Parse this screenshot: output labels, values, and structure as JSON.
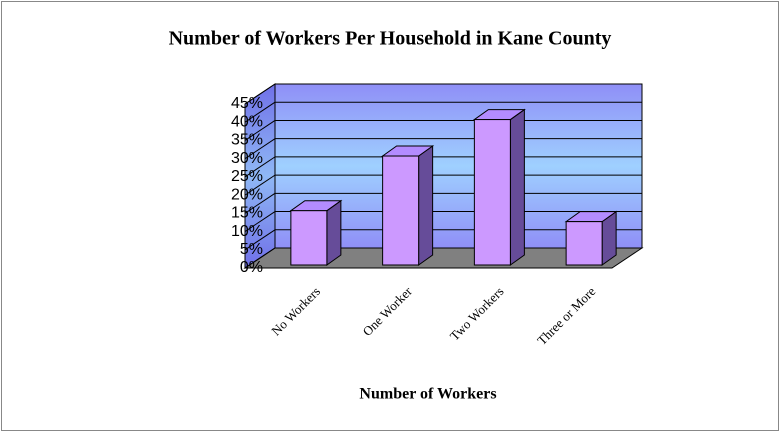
{
  "chart_data": {
    "type": "bar",
    "title": "Number of Workers Per Household in Kane County",
    "x_label": "Number of Workers",
    "categories": [
      "No Workers",
      "One Worker",
      "Two Workers",
      "Three or More"
    ],
    "values": [
      16,
      31,
      41,
      13
    ],
    "color": "#cc99ff",
    "ylim": [
      0,
      45
    ],
    "yticks": [
      {
        "value": 0,
        "label": "0%"
      },
      {
        "value": 5,
        "label": "5%"
      },
      {
        "value": 10,
        "label": "10%"
      },
      {
        "value": 15,
        "label": "15%"
      },
      {
        "value": 20,
        "label": "20%"
      },
      {
        "value": 25,
        "label": "25%"
      },
      {
        "value": 30,
        "label": "30%"
      },
      {
        "value": 35,
        "label": "35%"
      },
      {
        "value": 40,
        "label": "40%"
      },
      {
        "value": 45,
        "label": "45%"
      }
    ],
    "grid": true
  }
}
